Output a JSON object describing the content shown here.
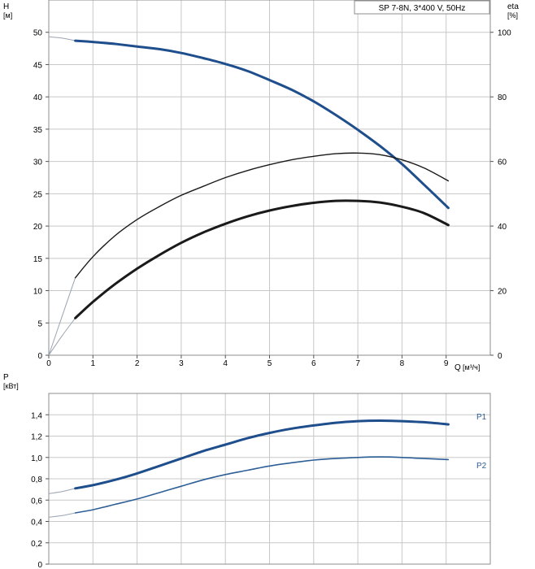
{
  "chart_data": [
    {
      "type": "line",
      "title": "SP 7-8N, 3*400 V, 50Hz",
      "xlabel": "Q",
      "xunit": "[м³/ч]",
      "ylabel": "H",
      "yunit": "[м]",
      "y2label": "eta",
      "y2unit": "[%]",
      "xlim": [
        0,
        10
      ],
      "xticks": [
        "0",
        "1",
        "2",
        "3",
        "4",
        "5",
        "6",
        "7",
        "8",
        "9"
      ],
      "ylim": [
        0,
        55
      ],
      "yticks": [
        "0",
        "5",
        "10",
        "15",
        "20",
        "25",
        "30",
        "35",
        "40",
        "45",
        "50"
      ],
      "y2lim": [
        0,
        110
      ],
      "y2ticks": [
        "0",
        "20",
        "40",
        "60",
        "80",
        "100"
      ],
      "grid": true,
      "series": [
        {
          "role": "head",
          "axis": "y",
          "color": "#1f4e8c",
          "width": 3,
          "x": [
            0.6,
            1,
            1.5,
            2,
            2.5,
            3,
            3.5,
            4,
            4.5,
            5,
            5.5,
            6,
            6.5,
            7,
            7.5,
            8,
            8.5,
            9.05
          ],
          "y": [
            48.7,
            48.5,
            48.2,
            47.8,
            47.4,
            46.8,
            46.0,
            45.1,
            44.0,
            42.6,
            41.1,
            39.3,
            37.2,
            34.9,
            32.4,
            29.6,
            26.4,
            22.8
          ],
          "pre_x": [
            0,
            0.3,
            0.6
          ],
          "pre_y": [
            49.3,
            49.1,
            48.7
          ]
        },
        {
          "role": "eta-thin",
          "axis": "y2",
          "color": "#1a1a1a",
          "width": 1.4,
          "x": [
            0.6,
            1,
            1.5,
            2,
            2.5,
            3,
            3.5,
            4,
            4.5,
            5,
            5.5,
            6,
            6.5,
            7,
            7.5,
            8,
            8.5,
            9.05
          ],
          "y": [
            24,
            30.5,
            37,
            42,
            46,
            49.5,
            52.3,
            55,
            57.2,
            59,
            60.5,
            61.6,
            62.4,
            62.6,
            62.1,
            60.5,
            58,
            54
          ],
          "pre_x": [
            0,
            0.3,
            0.6
          ],
          "pre_y": [
            0,
            12,
            24
          ]
        },
        {
          "role": "eta-thick",
          "axis": "y2",
          "color": "#1a1a1a",
          "width": 3,
          "x": [
            0.6,
            1,
            1.5,
            2,
            2.5,
            3,
            3.5,
            4,
            4.5,
            5,
            5.5,
            6,
            6.5,
            7,
            7.5,
            8,
            8.5,
            9.05
          ],
          "y": [
            11.5,
            16.5,
            22,
            26.8,
            31,
            34.8,
            38,
            40.7,
            43,
            44.8,
            46.2,
            47.2,
            47.8,
            47.8,
            47.3,
            46,
            44,
            40.3
          ],
          "pre_x": [
            0,
            0.3,
            0.6
          ],
          "pre_y": [
            0,
            6,
            11.5
          ]
        }
      ]
    },
    {
      "type": "line",
      "ylabel": "P",
      "yunit": "[кВт]",
      "xlim": [
        0,
        10
      ],
      "ylim": [
        0,
        1.6
      ],
      "yticks": [
        "0",
        "0,2",
        "0,4",
        "0,6",
        "0,8",
        "1,0",
        "1,2",
        "1,4"
      ],
      "grid": true,
      "series": [
        {
          "name": "P1",
          "axis": "y",
          "color": "#1f4e8c",
          "width": 3,
          "x": [
            0.6,
            1,
            1.5,
            2,
            2.5,
            3,
            3.5,
            4,
            4.5,
            5,
            5.5,
            6,
            6.5,
            7,
            7.5,
            8,
            8.5,
            9.05
          ],
          "y": [
            0.71,
            0.74,
            0.79,
            0.85,
            0.92,
            0.99,
            1.06,
            1.12,
            1.18,
            1.23,
            1.27,
            1.3,
            1.325,
            1.34,
            1.345,
            1.34,
            1.33,
            1.31
          ],
          "pre_x": [
            0,
            0.3,
            0.6
          ],
          "pre_y": [
            0.66,
            0.68,
            0.71
          ]
        },
        {
          "name": "P2",
          "axis": "y",
          "color": "#2d5f96",
          "width": 1.6,
          "x": [
            0.6,
            1,
            1.5,
            2,
            2.5,
            3,
            3.5,
            4,
            4.5,
            5,
            5.5,
            6,
            6.5,
            7,
            7.5,
            8,
            8.5,
            9.05
          ],
          "y": [
            0.48,
            0.51,
            0.56,
            0.61,
            0.67,
            0.73,
            0.79,
            0.84,
            0.88,
            0.92,
            0.95,
            0.975,
            0.99,
            1.0,
            1.005,
            1.0,
            0.99,
            0.98
          ],
          "pre_x": [
            0,
            0.3,
            0.6
          ],
          "pre_y": [
            0.44,
            0.455,
            0.48
          ]
        }
      ]
    }
  ]
}
